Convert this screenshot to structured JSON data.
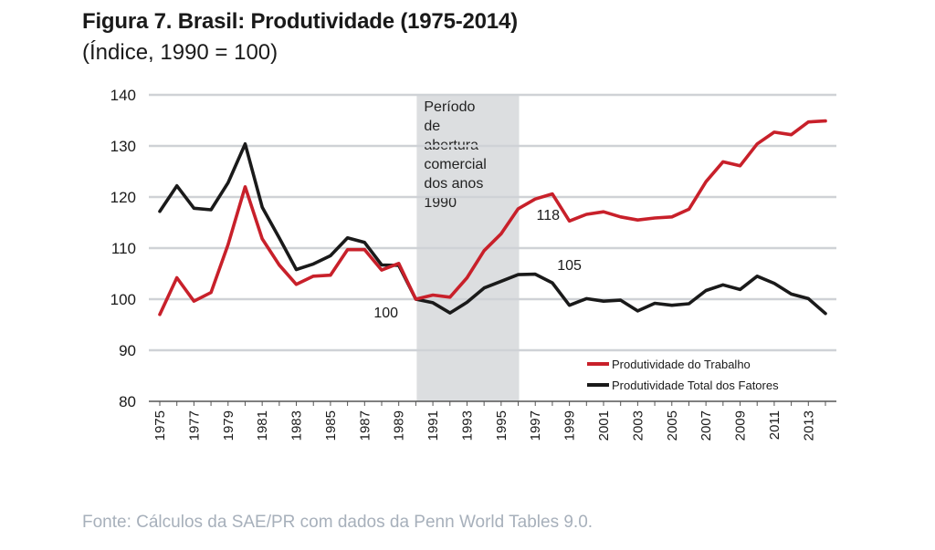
{
  "header": {
    "title": "Figura 7. Brasil: Produtividade (1975-2014)",
    "subtitle": "(Índice, 1990 = 100)"
  },
  "footer": {
    "source": "Fonte: Cálculos da SAE/PR com dados da Penn World Tables 9.0."
  },
  "chart_data": {
    "type": "line",
    "title": "Figura 7. Brasil: Produtividade (1975-2014)",
    "subtitle": "(Índice, 1990 = 100)",
    "xlabel": "",
    "ylabel": "",
    "ylim": [
      80,
      140
    ],
    "yticks": [
      80,
      90,
      100,
      110,
      120,
      130,
      140
    ],
    "xlim": [
      1975,
      2014
    ],
    "xtick_labels": [
      "1975",
      "1977",
      "1979",
      "1981",
      "1983",
      "1985",
      "1987",
      "1989",
      "1991",
      "1993",
      "1995",
      "1997",
      "1999",
      "2001",
      "2003",
      "2005",
      "2007",
      "2009",
      "2011",
      "2013"
    ],
    "grid": "horizontal",
    "legend_position": "bottom-right",
    "shaded_region": {
      "x_start": 1990,
      "x_end": 1996,
      "label_lines": [
        "Período",
        "de",
        "abertura",
        "comercial",
        "dos anos",
        "1990"
      ],
      "color": "#dcdee0"
    },
    "annotations": [
      {
        "text": "100",
        "x": 1990,
        "y": 100
      },
      {
        "text": "118",
        "x": 1996,
        "y": 117.7
      },
      {
        "text": "105",
        "x": 1997,
        "y": 105
      }
    ],
    "x": [
      1975,
      1976,
      1977,
      1978,
      1979,
      1980,
      1981,
      1982,
      1983,
      1984,
      1985,
      1986,
      1987,
      1988,
      1989,
      1990,
      1991,
      1992,
      1993,
      1994,
      1995,
      1996,
      1997,
      1998,
      1999,
      2000,
      2001,
      2002,
      2003,
      2004,
      2005,
      2006,
      2007,
      2008,
      2009,
      2010,
      2011,
      2012,
      2013,
      2014
    ],
    "series": [
      {
        "name": "Produtividade do Trabalho",
        "color": "#c8202a",
        "values": [
          97,
          104.2,
          99.6,
          101.3,
          110.7,
          122,
          111.8,
          106.7,
          102.9,
          104.5,
          104.7,
          109.7,
          109.7,
          105.7,
          107,
          100,
          100.8,
          100.4,
          104.2,
          109.5,
          112.8,
          117.7,
          119.6,
          120.6,
          115.3,
          116.6,
          117.1,
          116.1,
          115.5,
          115.9,
          116.1,
          117.6,
          123,
          126.9,
          126.1,
          130.4,
          132.7,
          132.2,
          134.7,
          134.9
        ]
      },
      {
        "name": "Produtividade Total dos Fatores",
        "color": "#1a1a1a",
        "values": [
          117.2,
          122.2,
          117.8,
          117.5,
          122.8,
          130.4,
          118,
          112,
          105.8,
          106.9,
          108.5,
          112,
          111.1,
          106.7,
          106.6,
          100,
          99.3,
          97.3,
          99.4,
          102.2,
          103.5,
          104.8,
          104.9,
          103.2,
          98.8,
          100.1,
          99.6,
          99.8,
          97.7,
          99.2,
          98.8,
          99.1,
          101.7,
          102.8,
          101.9,
          104.5,
          103.1,
          101,
          100.1,
          97.2
        ]
      }
    ]
  }
}
